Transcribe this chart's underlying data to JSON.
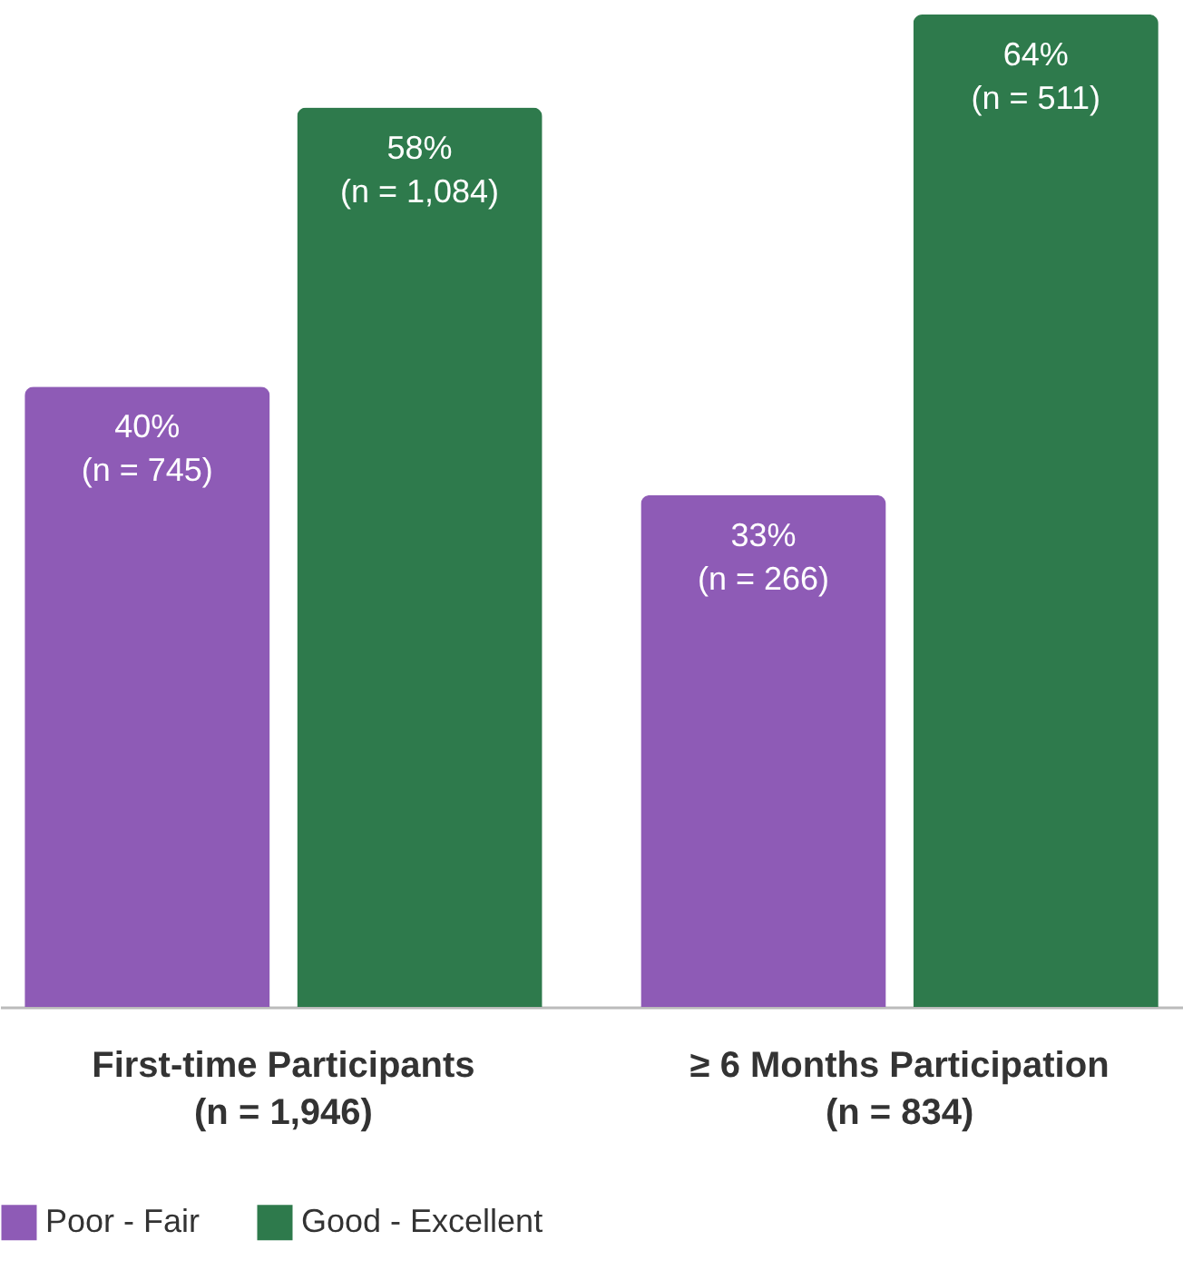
{
  "chart_data": {
    "type": "bar",
    "categories": [
      "First-time Participants\n(n = 1,946)",
      "≥ 6 Months Participation\n(n = 834)"
    ],
    "series": [
      {
        "name": "Poor - Fair",
        "color": "#8e5bb6",
        "values": [
          40,
          33
        ],
        "value_labels": [
          "40%\n(n = 745)",
          "33%\n(n = 266)"
        ]
      },
      {
        "name": "Good - Excellent",
        "color": "#2e7a4c",
        "values": [
          58,
          64
        ],
        "value_labels": [
          "58%\n(n = 1,084)",
          "64%\n(n = 511)"
        ]
      }
    ],
    "legend": "bottom",
    "grid": false
  }
}
